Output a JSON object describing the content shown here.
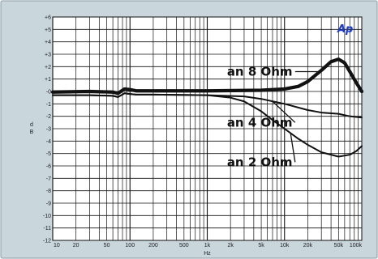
{
  "chart_data": {
    "type": "line",
    "title": "",
    "xlabel": "Hz",
    "ylabel": "d B",
    "x_scale": "log",
    "xlim": [
      10,
      100000
    ],
    "ylim": [
      -12,
      6
    ],
    "grid": true,
    "x_ticks": [
      {
        "value": 10,
        "label": "10"
      },
      {
        "value": 20,
        "label": "20"
      },
      {
        "value": 50,
        "label": "50"
      },
      {
        "value": 100,
        "label": "100"
      },
      {
        "value": 200,
        "label": "200"
      },
      {
        "value": 500,
        "label": "500"
      },
      {
        "value": 1000,
        "label": "1k"
      },
      {
        "value": 2000,
        "label": "2k"
      },
      {
        "value": 5000,
        "label": "5k"
      },
      {
        "value": 10000,
        "label": "10k"
      },
      {
        "value": 20000,
        "label": "20k"
      },
      {
        "value": 50000,
        "label": "50k"
      },
      {
        "value": 100000,
        "label": "100k"
      }
    ],
    "y_ticks": [
      {
        "value": 6,
        "label": "+6"
      },
      {
        "value": 5,
        "label": "+5"
      },
      {
        "value": 4,
        "label": "+4"
      },
      {
        "value": 3,
        "label": "+3"
      },
      {
        "value": 2,
        "label": "+2"
      },
      {
        "value": 1,
        "label": "+1"
      },
      {
        "value": 0,
        "label": "-0"
      },
      {
        "value": -1,
        "label": "-1"
      },
      {
        "value": -2,
        "label": "-2"
      },
      {
        "value": -3,
        "label": "-3"
      },
      {
        "value": -4,
        "label": "-4"
      },
      {
        "value": -5,
        "label": "-5"
      },
      {
        "value": -6,
        "label": "-6"
      },
      {
        "value": -7,
        "label": "-7"
      },
      {
        "value": -8,
        "label": "-8"
      },
      {
        "value": -9,
        "label": "-9"
      },
      {
        "value": -10,
        "label": "-10"
      },
      {
        "value": -11,
        "label": "-11"
      },
      {
        "value": -12,
        "label": "-12"
      }
    ],
    "series": [
      {
        "name": "",
        "stroke": "heavy",
        "x": [
          10,
          30,
          60,
          70,
          85,
          100,
          120,
          200,
          1000,
          5000,
          10000,
          15000,
          20000,
          30000,
          40000,
          50000,
          60000,
          70000,
          85000,
          100000
        ],
        "y": [
          -0.05,
          0.0,
          -0.05,
          -0.15,
          0.2,
          0.15,
          0.05,
          0.05,
          0.05,
          0.1,
          0.2,
          0.4,
          0.8,
          1.7,
          2.4,
          2.6,
          2.3,
          1.6,
          0.7,
          0.0
        ]
      },
      {
        "name": "",
        "stroke": "medium",
        "x": [
          10,
          30,
          60,
          70,
          85,
          100,
          120,
          200,
          1000,
          3000,
          5000,
          10000,
          20000,
          30000,
          50000,
          70000,
          100000
        ],
        "y": [
          -0.3,
          -0.3,
          -0.35,
          -0.45,
          -0.15,
          -0.2,
          -0.25,
          -0.25,
          -0.3,
          -0.4,
          -0.6,
          -1.0,
          -1.5,
          -1.7,
          -1.8,
          -2.0,
          -2.1
        ]
      },
      {
        "name": "",
        "stroke": "medium",
        "x": [
          10,
          30,
          60,
          70,
          85,
          100,
          120,
          200,
          1000,
          2000,
          3000,
          5000,
          7000,
          10000,
          15000,
          20000,
          30000,
          50000,
          70000,
          85000,
          100000
        ],
        "y": [
          -0.3,
          -0.3,
          -0.35,
          -0.45,
          -0.15,
          -0.2,
          -0.25,
          -0.25,
          -0.3,
          -0.5,
          -0.8,
          -1.6,
          -2.3,
          -3.0,
          -3.8,
          -4.3,
          -4.9,
          -5.25,
          -5.1,
          -4.8,
          -4.4
        ]
      }
    ],
    "annotations": [
      {
        "text": "an 8 Ohm",
        "x": 1800,
        "y": 1.6,
        "target_x": 28000,
        "target_y": 1.6
      },
      {
        "text": "an 4 Ohm",
        "x": 1800,
        "y": -2.5,
        "target_x": 7000,
        "target_y": -0.8
      },
      {
        "text": "an 2 Ohm",
        "x": 1800,
        "y": -5.7,
        "target_x": 12000,
        "target_y": -3.4
      }
    ]
  },
  "logo": {
    "text": "Ap",
    "color": "#1a3cc8"
  },
  "colors": {
    "frame_background": "#c9d6dc",
    "plot_background": "#ffffff",
    "grid": "#111111",
    "curve": "#111111"
  }
}
